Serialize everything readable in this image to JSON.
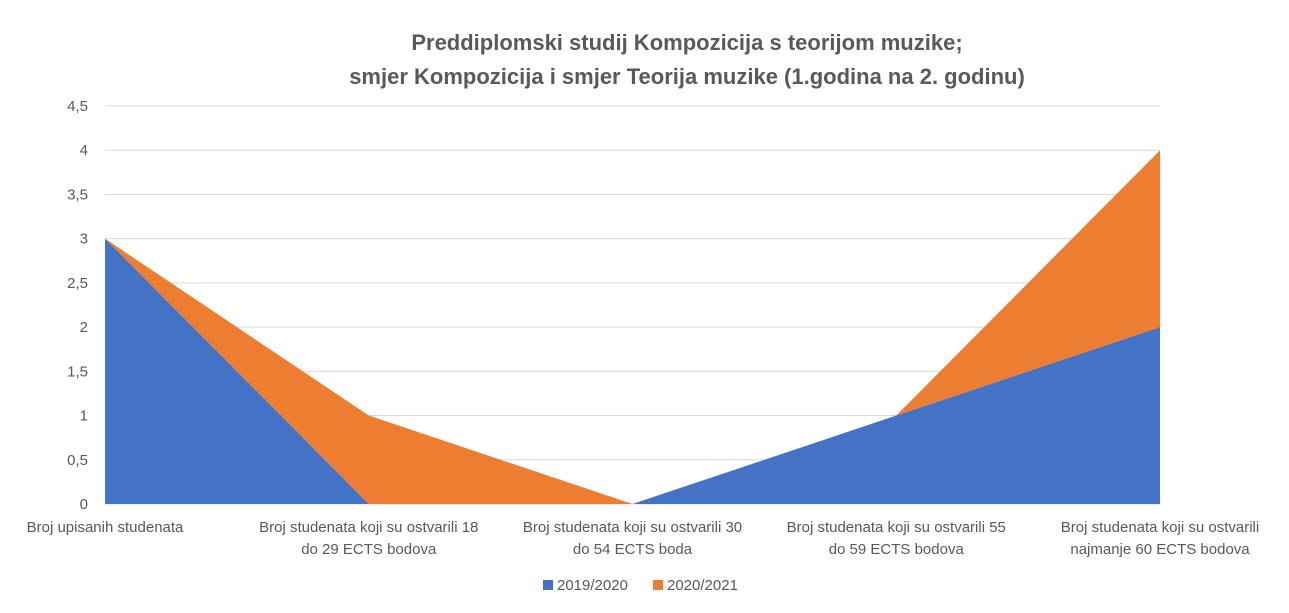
{
  "chart_data": {
    "type": "area",
    "stacked": true,
    "title": [
      "Preddiplomski studij Kompozicija s teorijom muzike;",
      "smjer Kompozicija i smjer Teorija muzike (1.godina na 2. godinu)"
    ],
    "categories": [
      [
        "Broj upisanih studenata"
      ],
      [
        "Broj studenata koji su ostvarili 18",
        "do 29 ECTS bodova"
      ],
      [
        "Broj studenata koji su ostvarili 30",
        "do 54 ECTS boda"
      ],
      [
        "Broj studenata koji su ostvarili 55",
        "do 59 ECTS bodova"
      ],
      [
        "Broj studenata koji su ostvarili",
        "najmanje 60 ECTS bodova"
      ]
    ],
    "series": [
      {
        "name": "2019/2020",
        "values": [
          3,
          0,
          0,
          1,
          2
        ],
        "color": "#4472c4"
      },
      {
        "name": "2020/2021",
        "values": [
          0,
          1,
          0,
          0,
          2
        ],
        "color": "#ed7d31"
      }
    ],
    "ylim": [
      0,
      4.5
    ],
    "yticks": [
      "0",
      "0,5",
      "1",
      "1,5",
      "2",
      "2,5",
      "3",
      "3,5",
      "4",
      "4,5"
    ],
    "grid": true,
    "legend": "bottom-center"
  }
}
